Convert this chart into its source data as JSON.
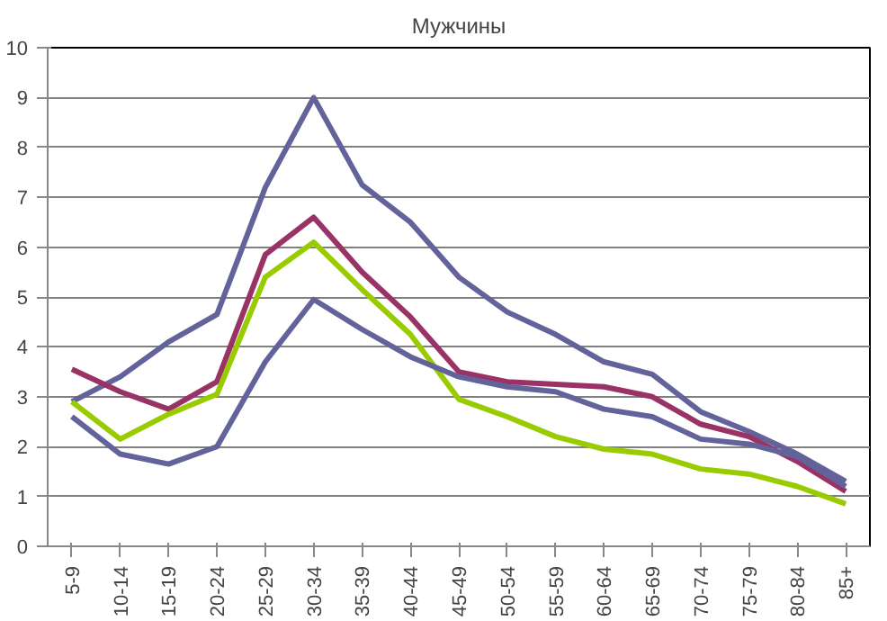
{
  "chart_data": {
    "type": "line",
    "title": "Мужчины",
    "categories": [
      "5-9",
      "10-14",
      "15-19",
      "20-24",
      "25-29",
      "30-34",
      "35-39",
      "40-44",
      "45-49",
      "50-54",
      "55-59",
      "60-64",
      "65-69",
      "70-74",
      "75-79",
      "80-84",
      "85+"
    ],
    "series": [
      {
        "color": "#63639b",
        "values": [
          2.9,
          3.4,
          4.1,
          4.65,
          7.2,
          9.0,
          7.25,
          6.5,
          5.4,
          4.7,
          4.25,
          3.7,
          3.45,
          2.7,
          2.3,
          1.85,
          1.3
        ]
      },
      {
        "color": "#993366",
        "values": [
          3.55,
          3.1,
          2.75,
          3.3,
          5.85,
          6.6,
          5.5,
          4.6,
          3.5,
          3.3,
          3.25,
          3.2,
          3.0,
          2.45,
          2.2,
          1.7,
          1.1
        ]
      },
      {
        "color": "#99cc00",
        "values": [
          2.9,
          2.15,
          2.65,
          3.05,
          5.4,
          6.1,
          5.15,
          4.25,
          2.95,
          2.6,
          2.2,
          1.95,
          1.85,
          1.55,
          1.45,
          1.2,
          0.85
        ]
      },
      {
        "color": "#63639b",
        "values": [
          2.6,
          1.85,
          1.65,
          2.0,
          3.7,
          4.95,
          4.35,
          3.8,
          3.4,
          3.2,
          3.1,
          2.75,
          2.6,
          2.15,
          2.05,
          1.8,
          1.2
        ]
      }
    ],
    "ylim": [
      0,
      10
    ],
    "yticks": [
      0,
      1,
      2,
      3,
      4,
      5,
      6,
      7,
      8,
      9,
      10
    ],
    "grid": "y"
  }
}
